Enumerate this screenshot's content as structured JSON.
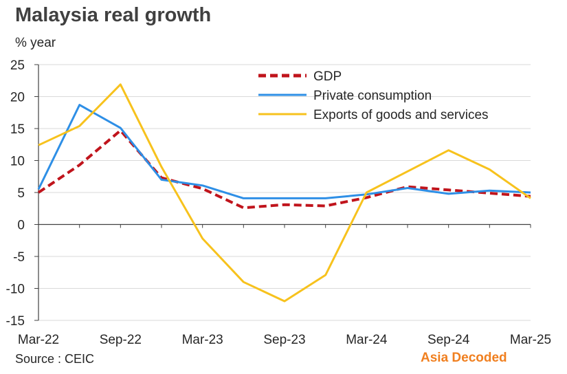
{
  "header": {
    "title": "Malaysia real growth",
    "unit_label": "% year"
  },
  "footer": {
    "source": "Source : CEIC",
    "brand": "Asia  Decoded",
    "brand_color": "#f07f1f"
  },
  "chart_data": {
    "type": "line",
    "title": "Malaysia real growth",
    "ylabel": "% year",
    "xlabel": "",
    "ylim": [
      -15,
      25
    ],
    "yticks": [
      25,
      20,
      15,
      10,
      5,
      0,
      -5,
      -10,
      -15
    ],
    "ytick_labels": [
      "25",
      "20",
      "15",
      "10",
      "5",
      "0",
      "-5",
      "-10",
      "-15"
    ],
    "x": [
      "Mar-22",
      "Jun-22",
      "Sep-22",
      "Dec-22",
      "Mar-23",
      "Jun-23",
      "Sep-23",
      "Dec-23",
      "Mar-24",
      "Jun-24",
      "Sep-24",
      "Dec-24",
      "Mar-25"
    ],
    "xtick_labels": [
      "Mar-22",
      "Sep-22",
      "Mar-23",
      "Sep-23",
      "Mar-24",
      "Sep-24",
      "Mar-25"
    ],
    "grid": true,
    "legend_position": "top-right",
    "series": [
      {
        "name": "GDP",
        "color": "#c0141c",
        "style": "dashed",
        "values": [
          5.0,
          9.3,
          14.7,
          7.3,
          5.6,
          2.6,
          3.1,
          2.9,
          4.2,
          5.9,
          5.4,
          4.9,
          4.4
        ]
      },
      {
        "name": "Private consumption",
        "color": "#2e8fe6",
        "style": "solid",
        "values": [
          5.5,
          18.7,
          15.1,
          7.0,
          6.1,
          4.1,
          4.1,
          4.1,
          4.7,
          5.7,
          4.8,
          5.3,
          5.0
        ]
      },
      {
        "name": "Exports of goods and services",
        "color": "#f7c21d",
        "style": "solid",
        "values": [
          12.4,
          15.4,
          21.9,
          9.0,
          -2.2,
          -9.0,
          -12.0,
          -7.9,
          5.0,
          8.3,
          11.6,
          8.6,
          4.1
        ]
      }
    ]
  }
}
